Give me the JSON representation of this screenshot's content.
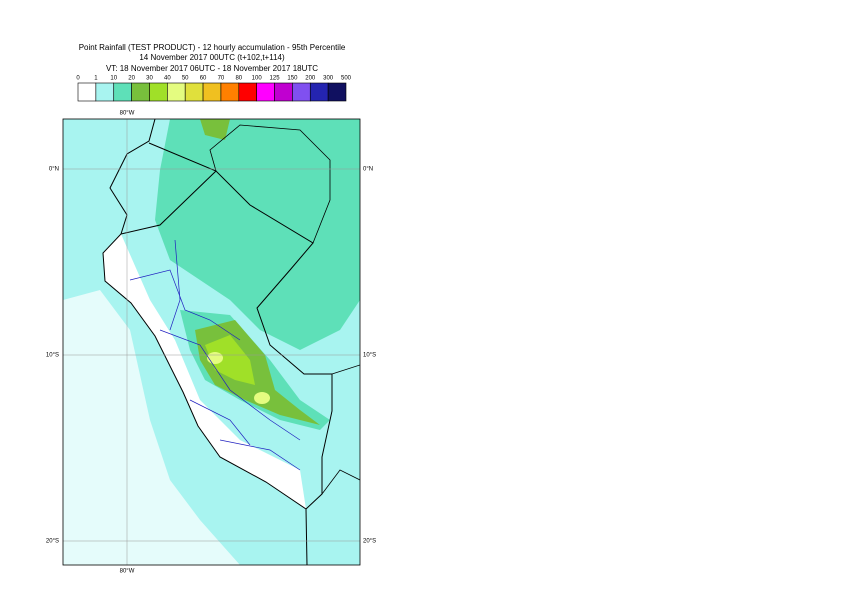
{
  "header": {
    "title": "Point Rainfall (TEST PRODUCT) - 12 hourly accumulation - 95th Percentile",
    "subtitle": "14 November 2017 00UTC (t+102,t+114)",
    "valid_time": "VT: 18 November 2017 06UTC - 18 November 2017 18UTC"
  },
  "legend": {
    "labels": [
      0,
      1,
      10,
      20,
      30,
      40,
      50,
      60,
      70,
      80,
      100,
      125,
      150,
      200,
      300,
      500
    ],
    "colors": [
      "#ffffff",
      "#a8f4f0",
      "#5ee0b8",
      "#78c03c",
      "#a0e028",
      "#e4fc80",
      "#e0e03c",
      "#f0c020",
      "#ff8000",
      "#ff0000",
      "#ff00ff",
      "#c000d0",
      "#8050f0",
      "#2424b0",
      "#101060"
    ]
  },
  "map": {
    "latitude_labels": [
      "0°N",
      "10°S",
      "20°S"
    ],
    "longitude_labels": [
      "80°W"
    ]
  }
}
